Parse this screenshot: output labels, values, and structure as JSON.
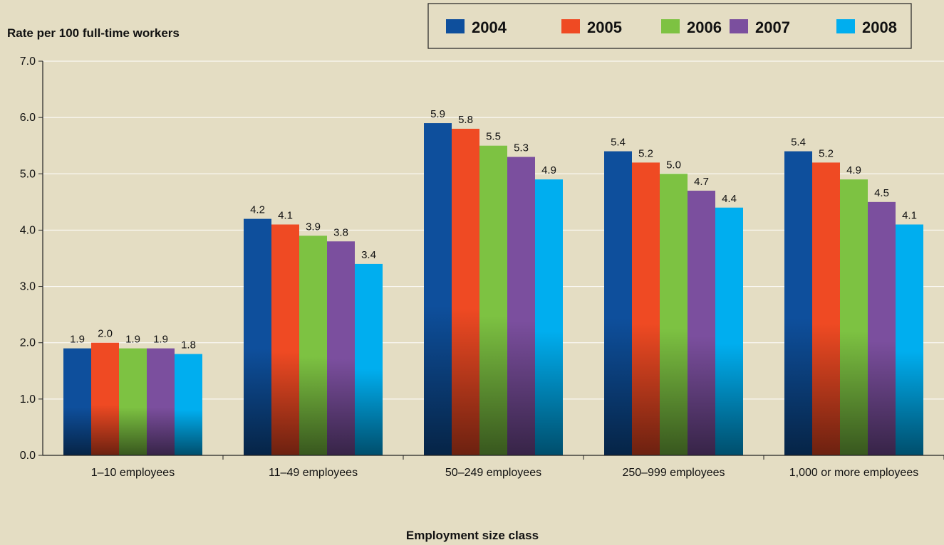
{
  "chart_data": {
    "type": "bar",
    "title": "",
    "ylabel": "Rate per 100 full-time workers",
    "xlabel": "Employment size class",
    "ylim": [
      0,
      7
    ],
    "yticks": [
      "0.0",
      "1.0",
      "2.0",
      "3.0",
      "4.0",
      "5.0",
      "6.0",
      "7.0"
    ],
    "grid": true,
    "legend_position": "top-right",
    "categories": [
      "1–10 employees",
      "11–49 employees",
      "50–249 employees",
      "250–999 employees",
      "1,000 or more employees"
    ],
    "series": [
      {
        "name": "2004",
        "color": "#0e4f9c",
        "values": [
          1.9,
          4.2,
          5.9,
          5.4,
          5.4
        ],
        "labels": [
          "1.9",
          "4.2",
          "5.9",
          "5.4",
          "5.4"
        ]
      },
      {
        "name": "2005",
        "color": "#ef4a23",
        "values": [
          2.0,
          4.1,
          5.8,
          5.2,
          5.2
        ],
        "labels": [
          "2.0",
          "4.1",
          "5.8",
          "5.2",
          "5.2"
        ]
      },
      {
        "name": "2006",
        "color": "#7dc242",
        "values": [
          1.9,
          3.9,
          5.5,
          5.0,
          4.9
        ],
        "labels": [
          "1.9",
          "3.9",
          "5.5",
          "5.0",
          "4.9"
        ]
      },
      {
        "name": "2007",
        "color": "#7b4f9e",
        "values": [
          1.9,
          3.8,
          5.3,
          4.7,
          4.5
        ],
        "labels": [
          "1.9",
          "3.8",
          "5.3",
          "4.7",
          "4.5"
        ]
      },
      {
        "name": "2008",
        "color": "#00aeef",
        "values": [
          1.8,
          3.4,
          4.9,
          4.4,
          4.1
        ],
        "labels": [
          "1.8",
          "3.4",
          "4.9",
          "4.4",
          "4.1"
        ]
      }
    ]
  }
}
